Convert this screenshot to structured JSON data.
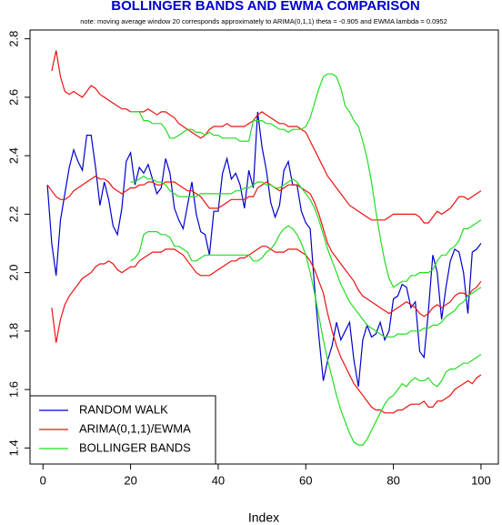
{
  "chart_data": {
    "type": "line",
    "title": "BOLLINGER BANDS AND EWMA COMPARISON",
    "subtitle": "note: moving average window  20  corresponds approximately to ARIMA(0,1,1) theta =  -0.905  and EWMA lambda =   0.0952",
    "xlabel": "Index",
    "xlim": [
      -2.96,
      103.96
    ],
    "xticks": [
      0,
      20,
      40,
      60,
      80,
      100
    ],
    "ylim": [
      1.345,
      2.83
    ],
    "yticks": [
      1.4,
      1.6,
      1.8,
      {
        "value": 2,
        "label": "2.0"
      },
      2.2,
      2.4,
      2.6,
      2.8
    ],
    "legend": "bottom-left",
    "x": [
      1,
      2,
      3,
      4,
      5,
      6,
      7,
      8,
      9,
      10,
      11,
      12,
      13,
      14,
      15,
      16,
      17,
      18,
      19,
      20,
      21,
      22,
      23,
      24,
      25,
      26,
      27,
      28,
      29,
      30,
      31,
      32,
      33,
      34,
      35,
      36,
      37,
      38,
      39,
      40,
      41,
      42,
      43,
      44,
      45,
      46,
      47,
      48,
      49,
      50,
      51,
      52,
      53,
      54,
      55,
      56,
      57,
      58,
      59,
      60,
      61,
      62,
      63,
      64,
      65,
      66,
      67,
      68,
      69,
      70,
      71,
      72,
      73,
      74,
      75,
      76,
      77,
      78,
      79,
      80,
      81,
      82,
      83,
      84,
      85,
      86,
      87,
      88,
      89,
      90,
      91,
      92,
      93,
      94,
      95,
      96,
      97,
      98,
      99,
      100
    ],
    "series": [
      {
        "name": "RANDOM WALK",
        "color": "#0000cc",
        "values": [
          2.3,
          2.1,
          1.99,
          2.18,
          2.27,
          2.36,
          2.42,
          2.38,
          2.35,
          2.47,
          2.47,
          2.36,
          2.23,
          2.31,
          2.25,
          2.16,
          2.13,
          2.22,
          2.38,
          2.41,
          2.3,
          2.36,
          2.34,
          2.37,
          2.32,
          2.27,
          2.29,
          2.39,
          2.34,
          2.22,
          2.18,
          2.15,
          2.23,
          2.31,
          2.2,
          2.14,
          2.13,
          2.06,
          2.21,
          2.21,
          2.34,
          2.39,
          2.32,
          2.34,
          2.3,
          2.22,
          2.35,
          2.29,
          2.55,
          2.43,
          2.35,
          2.24,
          2.19,
          2.23,
          2.35,
          2.38,
          2.3,
          2.3,
          2.21,
          2.17,
          2.15,
          1.95,
          1.78,
          1.63,
          1.7,
          1.75,
          1.83,
          1.77,
          1.8,
          1.83,
          1.7,
          1.61,
          1.77,
          1.82,
          1.78,
          1.79,
          1.83,
          1.77,
          1.8,
          1.91,
          1.92,
          1.96,
          1.95,
          1.88,
          1.9,
          1.73,
          1.71,
          1.87,
          2.06,
          2.0,
          1.84,
          1.95,
          2.04,
          2.08,
          2.07,
          2.0,
          1.86,
          2.07,
          2.08,
          2.1
        ]
      },
      {
        "name": "ARIMA(0,1,1)/EWMA",
        "color": "#ee1111",
        "values": [
          2.3,
          2.28,
          2.26,
          2.25,
          2.25,
          2.26,
          2.28,
          2.29,
          2.3,
          2.31,
          2.32,
          2.33,
          2.32,
          2.32,
          2.31,
          2.29,
          2.28,
          2.27,
          2.28,
          2.29,
          2.29,
          2.3,
          2.3,
          2.31,
          2.31,
          2.3,
          2.3,
          2.31,
          2.31,
          2.31,
          2.3,
          2.29,
          2.28,
          2.28,
          2.27,
          2.26,
          2.24,
          2.22,
          2.22,
          2.22,
          2.23,
          2.24,
          2.25,
          2.25,
          2.25,
          2.25,
          2.26,
          2.26,
          2.29,
          2.3,
          2.31,
          2.3,
          2.29,
          2.28,
          2.29,
          2.3,
          2.3,
          2.3,
          2.29,
          2.28,
          2.27,
          2.24,
          2.2,
          2.15,
          2.1,
          2.07,
          2.05,
          2.03,
          2.01,
          1.99,
          1.97,
          1.94,
          1.92,
          1.91,
          1.9,
          1.89,
          1.88,
          1.87,
          1.86,
          1.87,
          1.88,
          1.89,
          1.9,
          1.89,
          1.88,
          1.86,
          1.85,
          1.86,
          1.88,
          1.89,
          1.88,
          1.89,
          1.9,
          1.92,
          1.93,
          1.93,
          1.92,
          1.94,
          1.95,
          1.97
        ],
        "upper": [
          null,
          2.69,
          2.76,
          2.67,
          2.62,
          2.61,
          2.62,
          2.61,
          2.6,
          2.62,
          2.64,
          2.63,
          2.61,
          2.6,
          2.59,
          2.58,
          2.57,
          2.56,
          2.56,
          2.55,
          2.55,
          2.55,
          2.55,
          2.56,
          2.55,
          2.54,
          2.55,
          2.55,
          2.54,
          2.53,
          2.51,
          2.5,
          2.49,
          2.48,
          2.47,
          2.46,
          2.47,
          2.49,
          2.5,
          2.5,
          2.5,
          2.51,
          2.5,
          2.5,
          2.5,
          2.5,
          2.51,
          2.52,
          2.54,
          2.55,
          2.54,
          2.53,
          2.52,
          2.51,
          2.51,
          2.5,
          2.5,
          2.5,
          2.49,
          2.48,
          2.45,
          2.42,
          2.39,
          2.36,
          2.33,
          2.31,
          2.29,
          2.27,
          2.25,
          2.23,
          2.22,
          2.21,
          2.2,
          2.19,
          2.18,
          2.18,
          2.18,
          2.18,
          2.19,
          2.2,
          2.2,
          2.2,
          2.2,
          2.2,
          2.2,
          2.19,
          2.17,
          2.17,
          2.19,
          2.21,
          2.2,
          2.21,
          2.22,
          2.24,
          2.26,
          2.26,
          2.25,
          2.26,
          2.27,
          2.28
        ],
        "lower": [
          null,
          1.88,
          1.76,
          1.84,
          1.89,
          1.92,
          1.94,
          1.96,
          1.98,
          1.99,
          2.0,
          2.02,
          2.03,
          2.03,
          2.04,
          2.03,
          2.01,
          2.0,
          2.01,
          2.02,
          2.02,
          2.04,
          2.05,
          2.06,
          2.07,
          2.07,
          2.07,
          2.08,
          2.08,
          2.08,
          2.07,
          2.06,
          2.04,
          2.02,
          2.0,
          1.99,
          1.99,
          1.99,
          2.0,
          2.01,
          2.02,
          2.03,
          2.04,
          2.04,
          2.05,
          2.05,
          2.06,
          2.07,
          2.08,
          2.09,
          2.09,
          2.08,
          2.07,
          2.07,
          2.07,
          2.08,
          2.08,
          2.08,
          2.07,
          2.06,
          2.04,
          2.01,
          1.97,
          1.93,
          1.86,
          1.8,
          1.75,
          1.71,
          1.68,
          1.65,
          1.62,
          1.6,
          1.58,
          1.56,
          1.54,
          1.53,
          1.53,
          1.52,
          1.52,
          1.52,
          1.53,
          1.53,
          1.54,
          1.55,
          1.55,
          1.55,
          1.56,
          1.54,
          1.54,
          1.56,
          1.56,
          1.57,
          1.58,
          1.6,
          1.61,
          1.62,
          1.63,
          1.62,
          1.64,
          1.65
        ]
      },
      {
        "name": "BOLLINGER BANDS",
        "color": "#22dd22",
        "values": [
          null,
          null,
          null,
          null,
          null,
          null,
          null,
          null,
          null,
          null,
          null,
          null,
          null,
          null,
          null,
          null,
          null,
          null,
          null,
          2.31,
          2.31,
          2.32,
          2.33,
          2.32,
          2.32,
          2.31,
          2.31,
          2.3,
          2.28,
          2.27,
          2.26,
          2.26,
          2.26,
          2.26,
          2.26,
          2.27,
          2.27,
          2.27,
          2.27,
          2.27,
          2.27,
          2.27,
          2.27,
          2.28,
          2.28,
          2.29,
          2.29,
          2.3,
          2.31,
          2.31,
          2.3,
          2.3,
          2.29,
          2.29,
          2.3,
          2.31,
          2.32,
          2.31,
          2.29,
          2.27,
          2.25,
          2.22,
          2.18,
          2.13,
          2.08,
          2.04,
          2.0,
          1.96,
          1.93,
          1.9,
          1.88,
          1.86,
          1.84,
          1.82,
          1.81,
          1.8,
          1.79,
          1.78,
          1.78,
          1.78,
          1.79,
          1.79,
          1.79,
          1.8,
          1.8,
          1.8,
          1.81,
          1.81,
          1.82,
          1.82,
          1.83,
          1.85,
          1.86,
          1.87,
          1.89,
          1.9,
          1.92,
          1.93,
          1.94,
          1.95
        ],
        "upper": [
          null,
          null,
          null,
          null,
          null,
          null,
          null,
          null,
          null,
          null,
          null,
          null,
          null,
          null,
          null,
          null,
          null,
          null,
          null,
          2.55,
          2.55,
          2.55,
          2.52,
          2.52,
          2.51,
          2.51,
          2.51,
          2.49,
          2.46,
          2.46,
          2.47,
          2.48,
          2.49,
          2.49,
          2.48,
          2.48,
          2.47,
          2.48,
          2.47,
          2.47,
          2.46,
          2.46,
          2.46,
          2.46,
          2.45,
          2.45,
          2.45,
          2.52,
          2.52,
          2.52,
          2.51,
          2.51,
          2.5,
          2.49,
          2.49,
          2.48,
          2.49,
          2.49,
          2.49,
          2.5,
          2.53,
          2.58,
          2.63,
          2.67,
          2.68,
          2.68,
          2.67,
          2.63,
          2.57,
          2.55,
          2.52,
          2.5,
          2.45,
          2.39,
          2.31,
          2.21,
          2.12,
          2.04,
          1.98,
          1.95,
          1.96,
          1.97,
          1.97,
          1.99,
          1.99,
          2.0,
          2.0,
          2.0,
          2.01,
          2.04,
          2.06,
          2.06,
          2.08,
          2.09,
          2.11,
          2.15,
          2.15,
          2.16,
          2.17,
          2.18
        ],
        "lower": [
          null,
          null,
          null,
          null,
          null,
          null,
          null,
          null,
          null,
          null,
          null,
          null,
          null,
          null,
          null,
          null,
          null,
          null,
          null,
          2.04,
          2.05,
          2.07,
          2.13,
          2.14,
          2.14,
          2.14,
          2.13,
          2.13,
          2.12,
          2.09,
          2.09,
          2.08,
          2.07,
          2.04,
          2.04,
          2.05,
          2.06,
          2.06,
          2.06,
          2.06,
          2.06,
          2.06,
          2.06,
          2.06,
          2.06,
          2.06,
          2.06,
          2.04,
          2.04,
          2.05,
          2.07,
          2.08,
          2.1,
          2.13,
          2.15,
          2.16,
          2.15,
          2.13,
          2.1,
          2.06,
          2.0,
          1.93,
          1.85,
          1.77,
          1.7,
          1.64,
          1.58,
          1.53,
          1.49,
          1.45,
          1.42,
          1.41,
          1.41,
          1.43,
          1.46,
          1.49,
          1.52,
          1.55,
          1.57,
          1.58,
          1.6,
          1.62,
          1.61,
          1.63,
          1.64,
          1.63,
          1.63,
          1.64,
          1.62,
          1.61,
          1.63,
          1.66,
          1.67,
          1.67,
          1.68,
          1.69,
          1.69,
          1.7,
          1.71,
          1.72
        ]
      }
    ]
  }
}
